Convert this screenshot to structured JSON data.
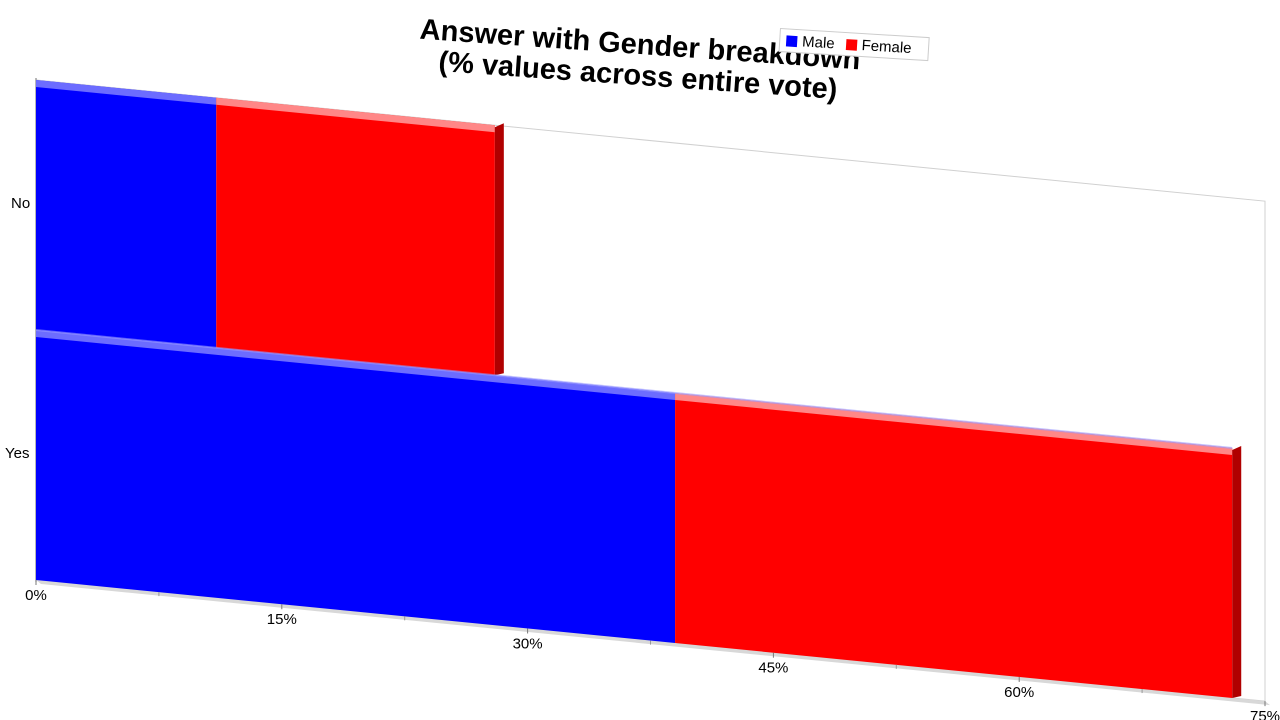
{
  "chart_data": {
    "type": "bar",
    "orientation": "horizontal",
    "stacked": true,
    "title": "Answer with Gender breakdown\n(% values across entire vote)",
    "title_lines": [
      "Answer with Gender breakdown",
      "(% values across entire vote)"
    ],
    "categories": [
      "No",
      "Yes"
    ],
    "series": [
      {
        "name": "Male",
        "color": "#0000ff",
        "values": [
          11,
          39
        ]
      },
      {
        "name": "Female",
        "color": "#ff0000",
        "values": [
          17,
          34
        ]
      }
    ],
    "xlim": [
      0,
      75
    ],
    "xticks": [
      "0%",
      "15%",
      "30%",
      "45%",
      "60%",
      "75%"
    ],
    "legend_position": "top-right",
    "grid": false
  }
}
